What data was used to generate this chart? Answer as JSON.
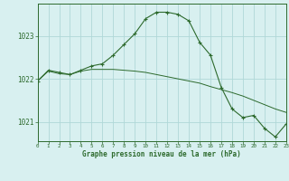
{
  "line1_x": [
    0,
    1,
    2,
    3,
    4,
    5,
    6,
    7,
    8,
    9,
    10,
    11,
    12,
    13,
    14,
    15,
    16,
    17,
    18,
    19,
    20,
    21,
    22,
    23
  ],
  "line1_y": [
    1021.95,
    1022.2,
    1022.15,
    1022.1,
    1022.2,
    1022.3,
    1022.35,
    1022.55,
    1022.8,
    1023.05,
    1023.4,
    1023.55,
    1023.55,
    1023.5,
    1023.35,
    1022.85,
    1022.55,
    1021.8,
    1021.3,
    1021.1,
    1021.15,
    1020.85,
    1020.65,
    1020.95
  ],
  "line2_x": [
    0,
    1,
    2,
    3,
    4,
    5,
    6,
    7,
    8,
    9,
    10,
    11,
    12,
    13,
    14,
    15,
    16,
    17,
    18,
    19,
    20,
    21,
    22,
    23
  ],
  "line2_y": [
    1021.95,
    1022.18,
    1022.12,
    1022.1,
    1022.18,
    1022.22,
    1022.22,
    1022.22,
    1022.2,
    1022.18,
    1022.15,
    1022.1,
    1022.05,
    1022.0,
    1021.95,
    1021.9,
    1021.82,
    1021.75,
    1021.68,
    1021.6,
    1021.5,
    1021.4,
    1021.3,
    1021.22
  ],
  "line_color": "#2d6a2d",
  "bg_color": "#d8f0f0",
  "grid_color": "#b0d8d8",
  "xlabel": "Graphe pression niveau de la mer (hPa)",
  "yticks": [
    1021,
    1022,
    1023
  ],
  "xticks": [
    0,
    1,
    2,
    3,
    4,
    5,
    6,
    7,
    8,
    9,
    10,
    11,
    12,
    13,
    14,
    15,
    16,
    17,
    18,
    19,
    20,
    21,
    22,
    23
  ],
  "ylim": [
    1020.55,
    1023.75
  ],
  "xlim": [
    0,
    23
  ]
}
